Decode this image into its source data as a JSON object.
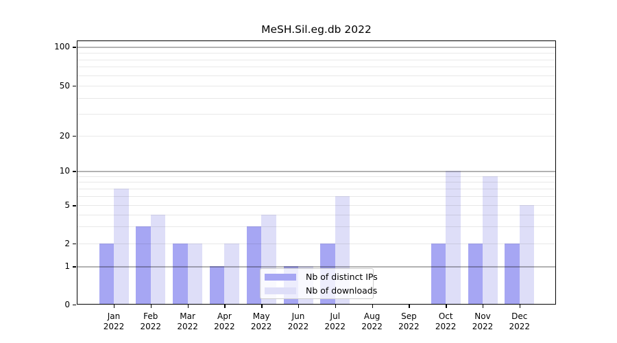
{
  "title": "MeSH.Sil.eg.db 2022",
  "colors": {
    "bar_distinct_ips": "#a6a6f3",
    "bar_downloads": "#dedef8",
    "grid_major": "rgba(0,0,0,0.30)",
    "grid_minor": "rgba(0,0,0,0.09)"
  },
  "x_axis": {
    "months": [
      "Jan",
      "Feb",
      "Mar",
      "Apr",
      "May",
      "Jun",
      "Jul",
      "Aug",
      "Sep",
      "Oct",
      "Nov",
      "Dec"
    ],
    "year": "2022"
  },
  "y_axis": {
    "tick_labels": [
      "0",
      "1",
      "2",
      "5",
      "10",
      "20",
      "50",
      "100"
    ]
  },
  "legend": {
    "items": [
      "Nb of distinct IPs",
      "Nb of downloads"
    ]
  },
  "chart_data": {
    "type": "bar",
    "title": "MeSH.Sil.eg.db 2022",
    "categories": [
      "Jan 2022",
      "Feb 2022",
      "Mar 2022",
      "Apr 2022",
      "May 2022",
      "Jun 2022",
      "Jul 2022",
      "Aug 2022",
      "Sep 2022",
      "Oct 2022",
      "Nov 2022",
      "Dec 2022"
    ],
    "series": [
      {
        "name": "Nb of distinct IPs",
        "color": "#a6a6f3",
        "values": [
          2,
          3,
          2,
          1,
          3,
          1,
          2,
          0,
          0,
          2,
          2,
          2
        ]
      },
      {
        "name": "Nb of downloads",
        "color": "#dedef8",
        "values": [
          7,
          4,
          2,
          2,
          4,
          1,
          6,
          0,
          0,
          10,
          9,
          5
        ]
      }
    ],
    "yscale": "log-like (0,1,2,5,10,20,50,100)",
    "yticks": [
      0,
      1,
      2,
      5,
      10,
      20,
      50,
      100
    ],
    "ylim": [
      0,
      100
    ],
    "grid": "horizontal major (1,10,100) + minor (2-9,20-90), drawn above bars",
    "legend_position": "lower center inside plot"
  }
}
